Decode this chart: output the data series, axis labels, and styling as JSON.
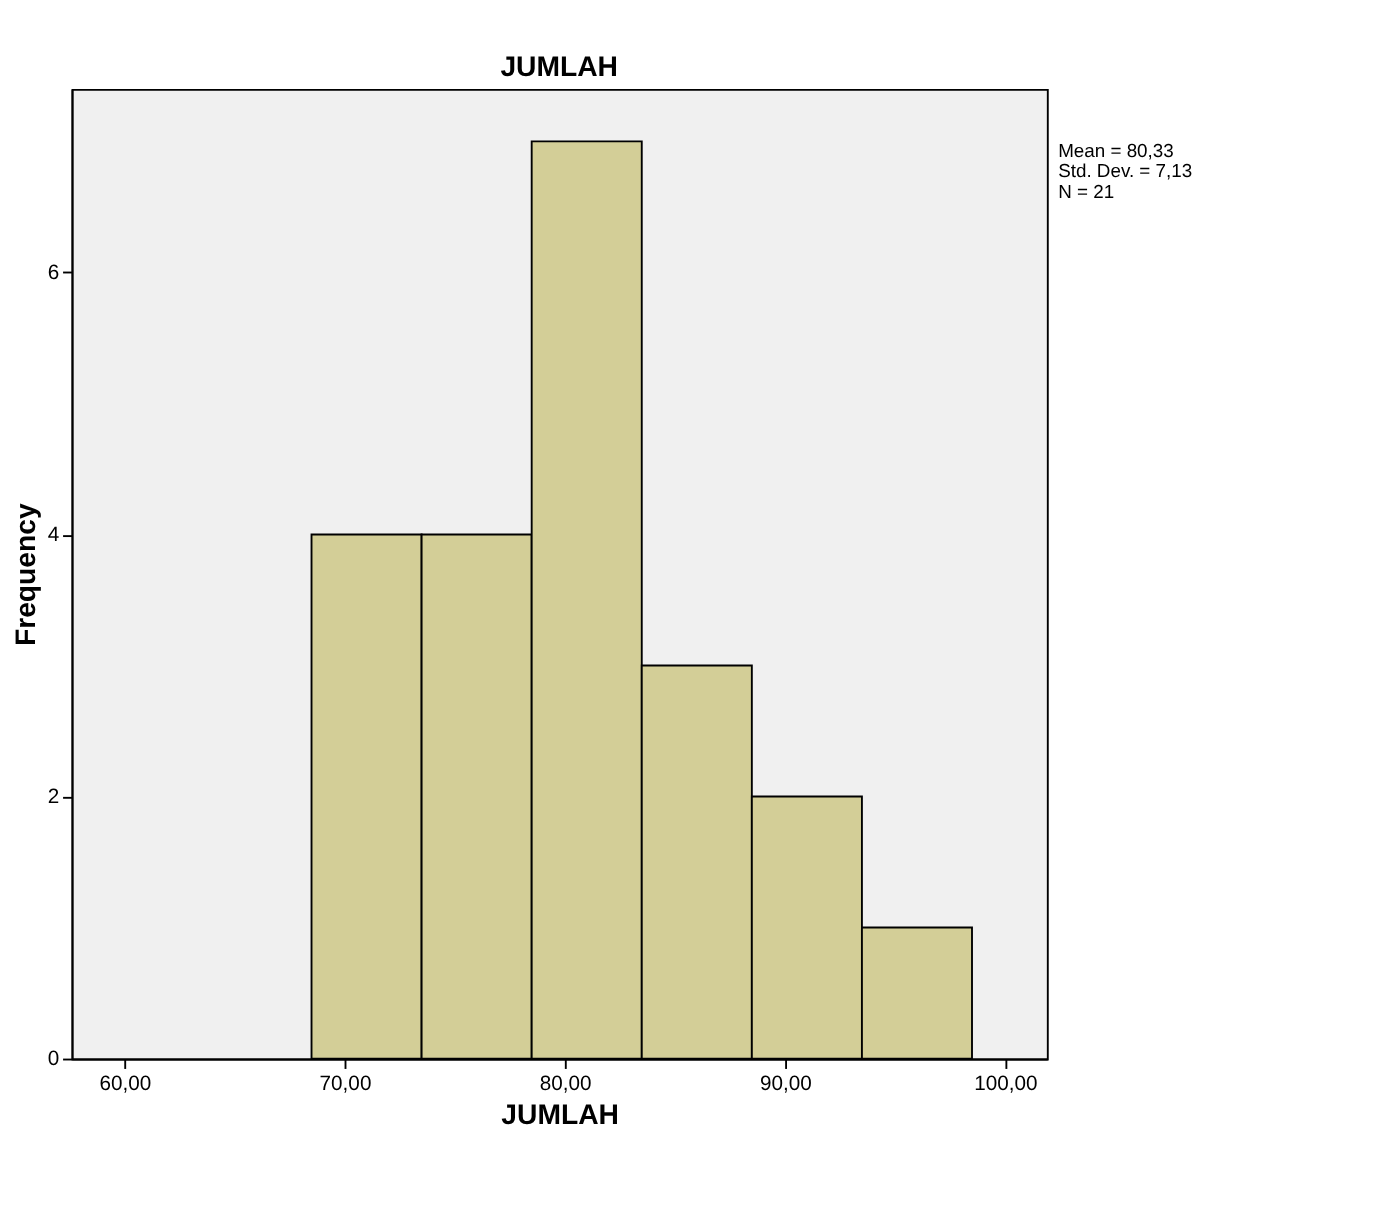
{
  "chart_data": {
    "type": "histogram",
    "title": "JUMLAH",
    "xlabel": "JUMLAH",
    "ylabel": "Frequency",
    "bins": [
      68.5,
      73.5,
      78.5,
      83.5,
      88.5,
      93.5,
      98.5
    ],
    "values": [
      4,
      4,
      7,
      3,
      2,
      1
    ],
    "color": "#d3ce97",
    "xlim": [
      57.6,
      101.9
    ],
    "xticks": [
      {
        "value": 60,
        "label": "60,00"
      },
      {
        "value": 70,
        "label": "70,00"
      },
      {
        "value": 80,
        "label": "80,00"
      },
      {
        "value": 90,
        "label": "90,00"
      },
      {
        "value": 100,
        "label": "100,00"
      }
    ],
    "ylim": [
      0,
      7.4
    ],
    "yticks": [
      0,
      2,
      4,
      6
    ],
    "grid": false,
    "annotations": [
      "Mean = 80,33",
      "Std. Dev. = 7,13",
      "N = 21"
    ]
  }
}
